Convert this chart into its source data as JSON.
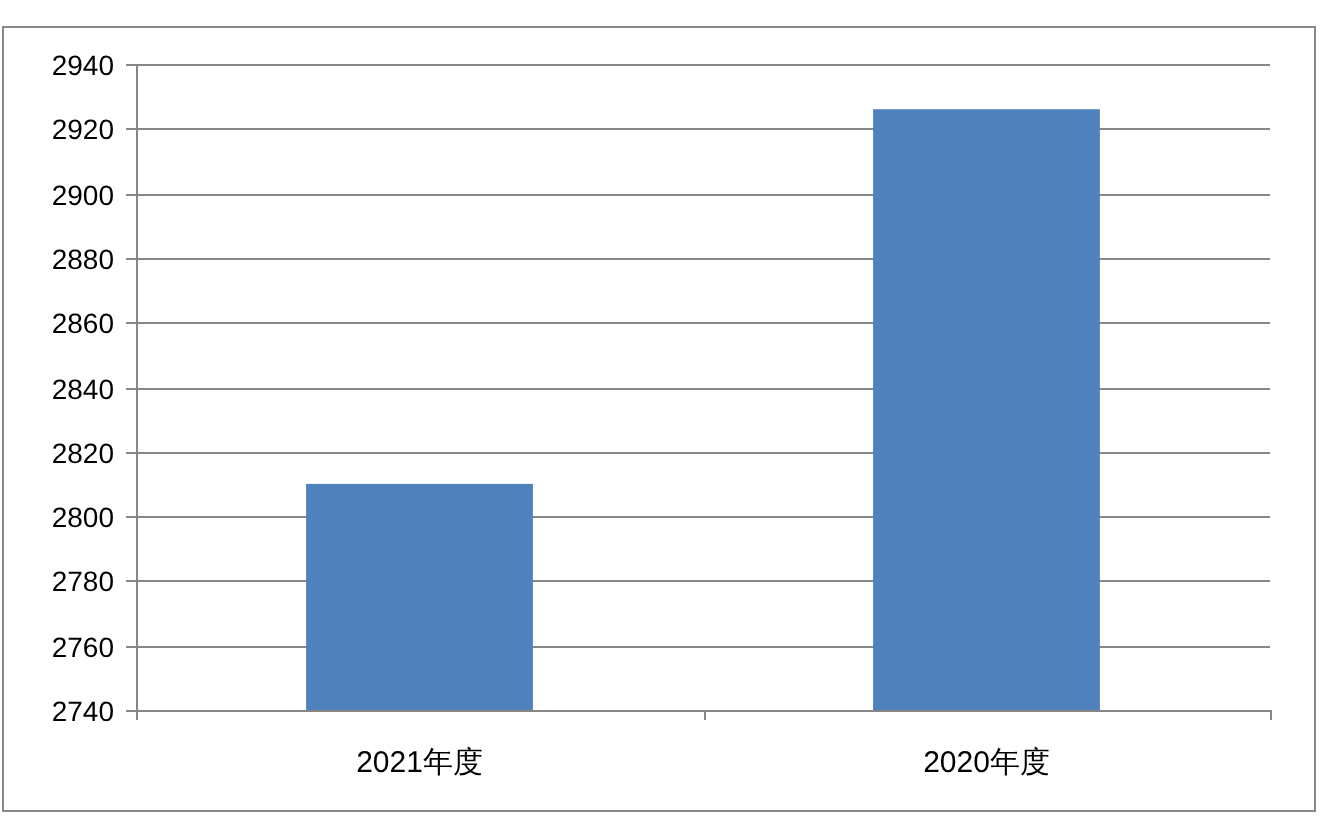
{
  "chart_data": {
    "type": "bar",
    "categories": [
      "2021年度",
      "2020年度"
    ],
    "values": [
      2810,
      2926
    ],
    "color": "#4f81bd",
    "ylim": [
      2740,
      2940
    ],
    "yticks": [
      2740,
      2760,
      2780,
      2800,
      2820,
      2840,
      2860,
      2880,
      2900,
      2920,
      2940
    ],
    "grid": "y"
  }
}
